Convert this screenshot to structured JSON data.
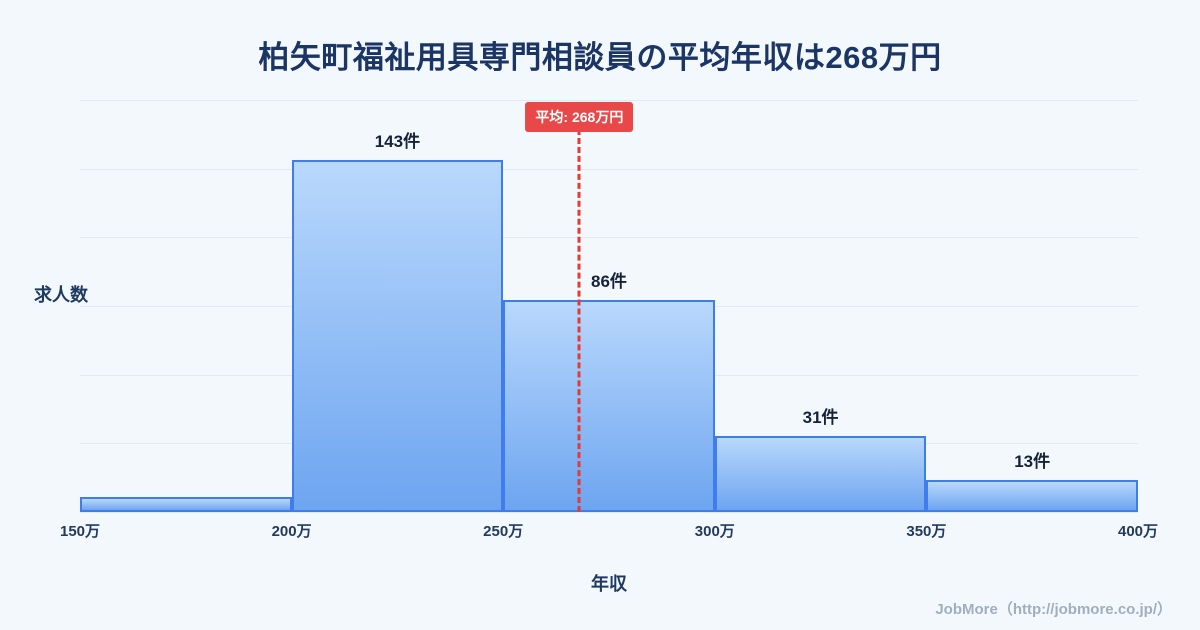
{
  "title": "柏矢町福祉用具専門相談員の平均年収は268万円",
  "footer": {
    "credit": "JobMore（http://jobmore.co.jp/）"
  },
  "chart_data": {
    "type": "bar",
    "title": "柏矢町福祉用具専門相談員の平均年収は268万円",
    "xlabel": "年収",
    "ylabel": "求人数",
    "x_ticks": [
      "150万",
      "200万",
      "250万",
      "300万",
      "350万",
      "400万"
    ],
    "x_range": [
      150,
      400
    ],
    "categories": [
      "150万-200万",
      "200万-250万",
      "250万-300万",
      "300万-350万",
      "350万-400万"
    ],
    "values": [
      6,
      143,
      86,
      31,
      13
    ],
    "bar_labels": [
      "",
      "143件",
      "86件",
      "31件",
      "13件"
    ],
    "mean": {
      "value": 268,
      "label": "平均: 268万円"
    },
    "ylim": [
      0,
      167
    ],
    "grid": true,
    "legend": "none",
    "colors": {
      "background": "#f3f8fd",
      "bar_fill_top": "#b9d8fc",
      "bar_fill_bottom": "#6da5f0",
      "bar_border": "#3f7ded",
      "gridline": "#e2e9f1",
      "mean_line": "#e53935",
      "mean_badge_bg": "#e84848",
      "mean_badge_text": "#ffffff",
      "title_text": "#1b3564",
      "footer_text": "#9fafc0"
    }
  }
}
